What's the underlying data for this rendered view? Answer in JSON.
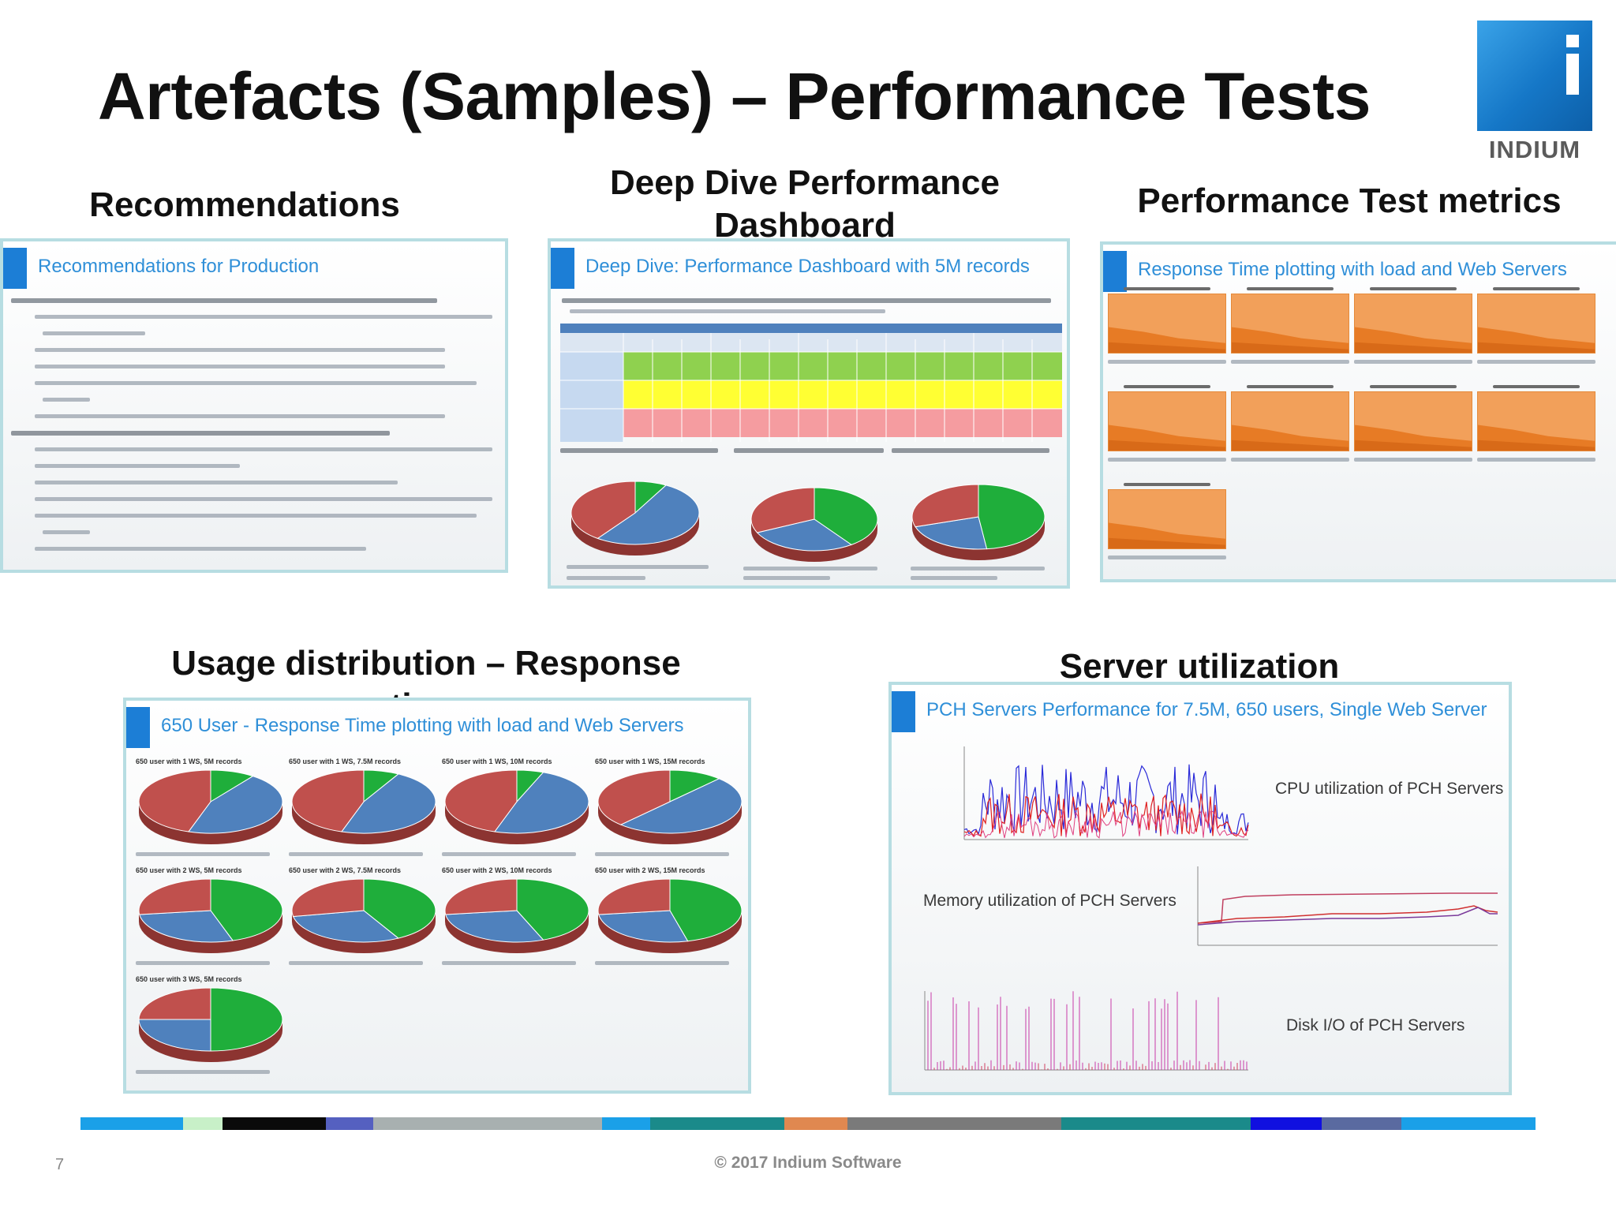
{
  "slide": {
    "title": "Artefacts (Samples) – Performance Tests",
    "page_number": "7",
    "copyright": "© 2017 Indium Software"
  },
  "logo": {
    "word": "INDIUM",
    "icon": "indium-i-logo"
  },
  "sections": {
    "recommendations": {
      "label": "Recommendations",
      "panel_title": "Recommendations for Production"
    },
    "deep_dive": {
      "label": "Deep Dive Performance Dashboard",
      "panel_title": "Deep Dive: Performance Dashboard with 5M records"
    },
    "metrics": {
      "label": "Performance Test metrics",
      "panel_title": "Response Time plotting with load and Web Servers"
    },
    "usage": {
      "label": "Usage distribution – Response time",
      "panel_title": "650 User - Response Time plotting with load and Web Servers",
      "chart_captions": [
        "650 user with 1 WS, 5M records",
        "650 user with 1 WS, 7.5M records",
        "650 user with 1 WS, 10M records",
        "650 user with 1 WS, 15M records",
        "650 user with 2 WS, 5M records",
        "650 user with 2 WS, 7.5M records",
        "650 user with 2 WS, 10M records",
        "650 user with 2 WS, 15M records",
        "650 user with 3 WS, 5M records"
      ]
    },
    "server": {
      "label": "Server utilization",
      "panel_title": "PCH Servers Performance for 7.5M, 650 users, Single Web Server",
      "cpu_label": "CPU utilization of PCH Servers",
      "memory_label": "Memory utilization of PCH Servers",
      "disk_label": "Disk I/O of PCH Servers"
    }
  },
  "colors": {
    "accent_blue": "#1c7ed6",
    "panel_border": "#b7dde2",
    "pie_red": "#c0504d",
    "pie_blue": "#4f81bd",
    "pie_green": "#1fae3b",
    "table_green": "#8fd14f",
    "table_yellow": "#ffff33",
    "table_pink": "#f59ca0",
    "table_header_blue": "#4f81bd",
    "chart_orange": "#f2a05a"
  },
  "footer_segments": [
    "#1aa0e8",
    "#c8f0c8",
    "#0a0a0a",
    "#5560c0",
    "#a8b0b0",
    "#1aa0e8",
    "#1a8a8a",
    "#e08850",
    "#7a7a7a",
    "#1a8a8a",
    "#1010e0",
    "#5a6aa0",
    "#1aa0e8"
  ],
  "footer_weights": [
    13,
    5,
    13,
    6,
    29,
    6,
    17,
    8,
    27,
    24,
    9,
    10,
    17
  ]
}
